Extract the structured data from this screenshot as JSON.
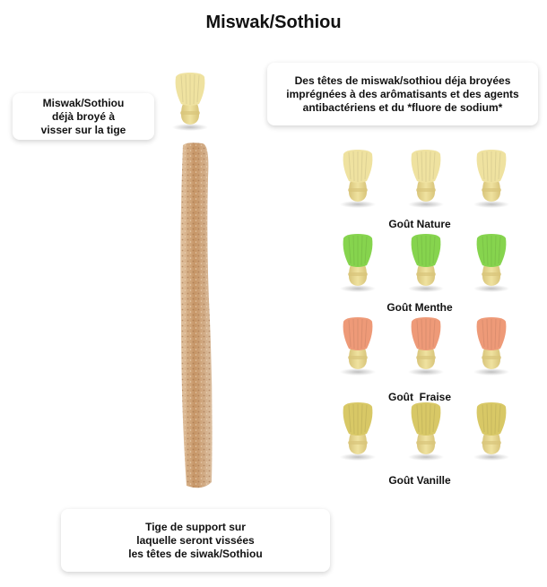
{
  "title": "Miswak/Sothiou",
  "callouts": {
    "head": "Miswak/Sothiou\ndéjà broyé à\nvisser sur la tige",
    "flavors": "Des têtes de miswak/sothiou déja broyées\nimprégnées à des arômatisants et des agents\nantibactériens et du *fluore de sodium*",
    "stem": "Tige de support sur\nlaquelle seront  vissées\nles têtes de  siwak/Sothiou"
  },
  "flavors": [
    {
      "label": "Goût Nature",
      "bristle_color": "#efe2a0",
      "icon": "miswak-head-icon"
    },
    {
      "label": "Goût Menthe",
      "bristle_color": "#86d44e",
      "icon": "miswak-head-icon"
    },
    {
      "label": "Goût  Fraise",
      "bristle_color": "#ee9a78",
      "icon": "miswak-head-icon"
    },
    {
      "label": "Goût Vanille",
      "bristle_color": "#d8c866",
      "icon": "miswak-head-icon"
    }
  ],
  "colors": {
    "wood": "#efe2a0",
    "wood_shadow": "#d9c57a",
    "stem": "#c89668"
  }
}
